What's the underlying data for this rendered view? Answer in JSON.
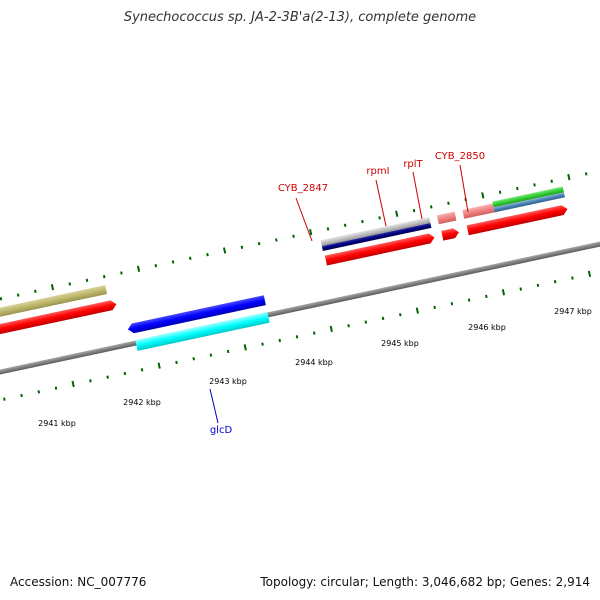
{
  "title": "Synechococcus sp. JA-2-3B'a(2-13), complete genome",
  "footer": {
    "accession": "Accession: NC_007776",
    "summary": "Topology: circular; Length: 3,046,682 bp; Genes: 2,914"
  },
  "colors": {
    "backbone": "#808080",
    "cds": "#ff0000",
    "rna": "#f08080",
    "label_forward": "#cc0000",
    "label_reverse": "#0000cc",
    "tick": "#006400"
  },
  "scale_labels": [
    "2941 kbp",
    "2942 kbp",
    "2943 kbp",
    "2944 kbp",
    "2945 kbp",
    "2946 kbp",
    "2947 kbp"
  ],
  "gene_labels": {
    "forward": [
      "CYB_2847",
      "rpmI",
      "rplT",
      "CYB_2850"
    ],
    "reverse": [
      "glcD"
    ]
  }
}
